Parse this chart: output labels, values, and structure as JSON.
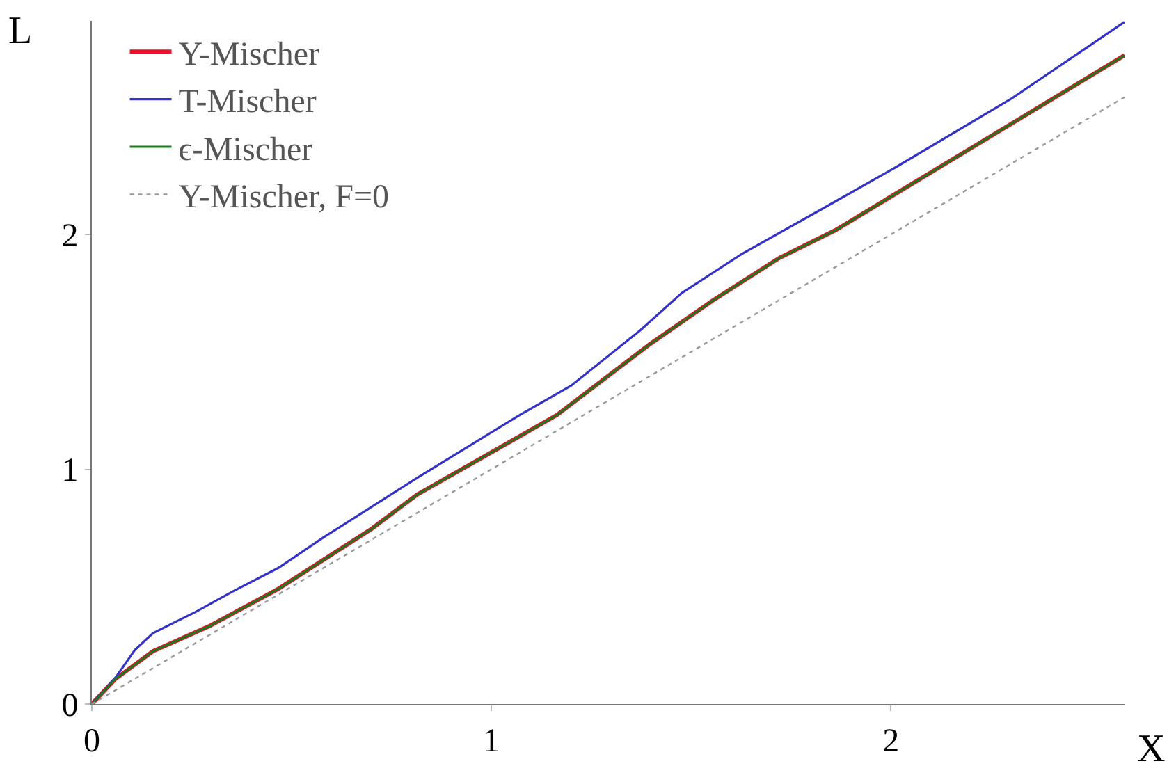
{
  "chart_data": {
    "type": "line",
    "xlabel": "X",
    "ylabel": "L",
    "xlim": [
      0,
      2.585
    ],
    "ylim": [
      0,
      2.91
    ],
    "xticks": [
      0,
      1,
      2
    ],
    "yticks": [
      0,
      1,
      2
    ],
    "grid": false,
    "legend": "top left",
    "marker": "none",
    "series": [
      {
        "name": "Y-Mischer",
        "color": "#e8102a",
        "x": [
          0,
          0.059,
          0.153,
          0.293,
          0.467,
          0.7,
          0.815,
          1.164,
          1.397,
          1.557,
          1.721,
          1.861,
          2.303,
          2.585
        ],
        "values": [
          0,
          0.107,
          0.225,
          0.331,
          0.491,
          0.746,
          0.893,
          1.231,
          1.533,
          1.722,
          1.9,
          2.018,
          2.473,
          2.763
        ]
      },
      {
        "name": "T-Mischer",
        "color": "#3333cc",
        "x": [
          0,
          0.059,
          0.108,
          0.153,
          0.258,
          0.352,
          0.467,
          0.58,
          0.815,
          1.07,
          1.199,
          1.373,
          1.477,
          1.627,
          1.826,
          2.01,
          2.303,
          2.585
        ],
        "values": [
          0,
          0.112,
          0.231,
          0.302,
          0.391,
          0.479,
          0.58,
          0.71,
          0.964,
          1.23,
          1.355,
          1.592,
          1.751,
          1.917,
          2.107,
          2.284,
          2.58,
          2.905
        ]
      },
      {
        "name": "ϵ-Mischer",
        "color": "#1a7a1a",
        "x": [
          0,
          0.059,
          0.153,
          0.293,
          0.467,
          0.7,
          0.815,
          1.164,
          1.397,
          1.557,
          1.721,
          1.861,
          2.303,
          2.585
        ],
        "values": [
          0,
          0.107,
          0.225,
          0.331,
          0.491,
          0.746,
          0.893,
          1.231,
          1.533,
          1.722,
          1.9,
          2.018,
          2.473,
          2.763
        ]
      },
      {
        "name": "Y-Mischer, F=0",
        "color": "#999999",
        "line_style": "dotted",
        "x": [
          0,
          2.585
        ],
        "values": [
          0,
          2.585
        ]
      }
    ]
  }
}
